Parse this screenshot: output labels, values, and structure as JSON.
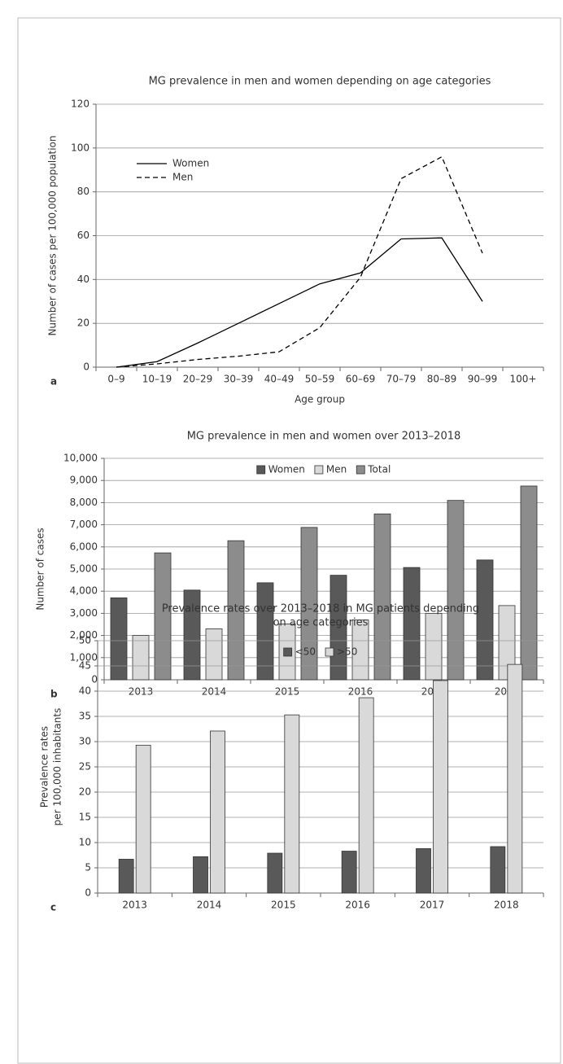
{
  "chart_data": [
    {
      "type": "line",
      "panel_label": "a",
      "title": "MG prevalence in men and women depending on age categories",
      "x_label": "Age group",
      "y_label": "Number of cases per 100,000 population",
      "categories": [
        "0–9",
        "10–19",
        "20–29",
        "30–39",
        "40–49",
        "50–59",
        "60–69",
        "70–79",
        "80–89",
        "90–99",
        "100+"
      ],
      "series": [
        {
          "name": "Women",
          "color": "#000000",
          "dash": "solid",
          "values": [
            0,
            2.5,
            11,
            20,
            29,
            38,
            43,
            58.5,
            59,
            30,
            null
          ]
        },
        {
          "name": "Men",
          "color": "#000000",
          "dash": "dashed",
          "values": [
            0,
            1.5,
            3.5,
            5,
            7,
            18,
            41,
            86,
            96,
            52,
            null
          ]
        }
      ],
      "ylim": [
        0,
        120
      ],
      "yticks": [
        0,
        20,
        40,
        60,
        80,
        100,
        120
      ],
      "grid": true,
      "legend": "upper left"
    },
    {
      "type": "bar",
      "panel_label": "b",
      "title": "MG prevalence in men and women over 2013–2018",
      "y_label": "Number of cases",
      "categories": [
        "2013",
        "2014",
        "2015",
        "2016",
        "2017",
        "2018"
      ],
      "series": [
        {
          "name": "Women",
          "color": "#595959",
          "values": [
            3700,
            4050,
            4380,
            4720,
            5070,
            5410
          ]
        },
        {
          "name": "Men",
          "color": "#d9d9d9",
          "values": [
            2000,
            2300,
            2520,
            2700,
            3000,
            3350
          ]
        },
        {
          "name": "Total",
          "color": "#8c8c8c",
          "values": [
            5730,
            6280,
            6880,
            7490,
            8100,
            8750
          ]
        }
      ],
      "ylim": [
        0,
        10000
      ],
      "yticks": [
        0,
        {
          "value": 1000,
          "label": "1,000"
        },
        {
          "value": 2000,
          "label": "2,000"
        },
        {
          "value": 3000,
          "label": "3,000"
        },
        {
          "value": 4000,
          "label": "4,000"
        },
        {
          "value": 5000,
          "label": "5,000"
        },
        {
          "value": 6000,
          "label": "6,000"
        },
        {
          "value": 7000,
          "label": "7,000"
        },
        {
          "value": 8000,
          "label": "8,000"
        },
        {
          "value": 9000,
          "label": "9,000"
        },
        {
          "value": 10000,
          "label": "10,000"
        }
      ],
      "grid": true,
      "legend": "upper center"
    },
    {
      "type": "bar",
      "panel_label": "c",
      "title": [
        "Prevalence rates over 2013–2018 in MG patients depending",
        "on age categories"
      ],
      "y_label": [
        "Prevalence rates",
        "per 100,000 inhabitants"
      ],
      "categories": [
        "2013",
        "2014",
        "2015",
        "2016",
        "2017",
        "2018"
      ],
      "series": [
        {
          "name": "<50",
          "color": "#595959",
          "values": [
            6.7,
            7.2,
            7.9,
            8.3,
            8.8,
            9.2
          ]
        },
        {
          "name": ">50",
          "color": "#d9d9d9",
          "values": [
            29.3,
            32.1,
            35.3,
            38.7,
            42.1,
            45.3
          ]
        }
      ],
      "ylim": [
        0,
        50
      ],
      "yticks": [
        0,
        5,
        10,
        15,
        20,
        25,
        30,
        35,
        40,
        45,
        50
      ],
      "grid": true,
      "legend": "upper center"
    }
  ]
}
